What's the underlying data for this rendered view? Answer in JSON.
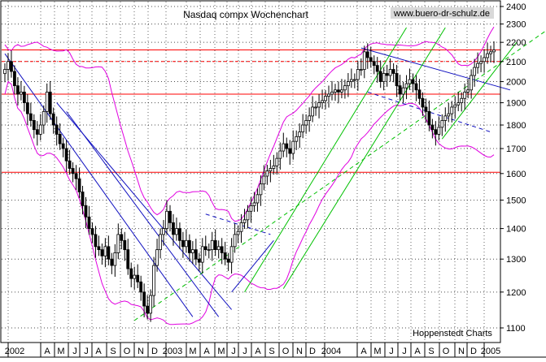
{
  "chart_data": {
    "type": "candlestick",
    "title": "Nasdaq compx Wochenchart",
    "watermark": "www.buero-dr-schulz.de",
    "source_label": "Hoppenstedt Charts",
    "y_scale": "log",
    "ylim": [
      1050,
      2420
    ],
    "y_ticks": [
      2400,
      2300,
      2200,
      2100,
      2000,
      1900,
      1800,
      1700,
      1600,
      1500,
      1400,
      1300,
      1200,
      1100
    ],
    "x_ticks": [
      "2002",
      "A",
      "M",
      "J",
      "J",
      "A",
      "S",
      "O",
      "N",
      "D",
      "2003",
      "M",
      "A",
      "M",
      "J",
      "J",
      "A",
      "S",
      "O",
      "N",
      "D",
      "2004",
      "A",
      "M",
      "J",
      "J",
      "A",
      "S",
      "O",
      "N",
      "D",
      "2005"
    ],
    "horizontal_lines": [
      {
        "value": 2160,
        "style": "solid",
        "color": "#ff0000"
      },
      {
        "value": 2100,
        "style": "dashed",
        "color": "#ff0000"
      },
      {
        "value": 1940,
        "style": "solid",
        "color": "#ff0000"
      },
      {
        "value": 1605,
        "style": "solid",
        "color": "#ff0000"
      }
    ],
    "colors": {
      "candles": "#000000",
      "bollinger": "#e000e0",
      "trend_blue": "#1010c0",
      "trend_green": "#00c000",
      "support_red": "#ff0000",
      "grid": "#000000"
    },
    "weekly_close": [
      2060,
      2100,
      2050,
      1980,
      1940,
      1950,
      1900,
      1850,
      1820,
      1780,
      1760,
      1800,
      1860,
      1950,
      1850,
      1800,
      1760,
      1720,
      1700,
      1650,
      1620,
      1600,
      1580,
      1530,
      1480,
      1440,
      1400,
      1380,
      1340,
      1330,
      1310,
      1340,
      1300,
      1280,
      1320,
      1380,
      1360,
      1330,
      1270,
      1240,
      1250,
      1230,
      1200,
      1160,
      1140,
      1190,
      1280,
      1330,
      1380,
      1400,
      1460,
      1420,
      1380,
      1400,
      1360,
      1340,
      1360,
      1320,
      1330,
      1300,
      1290,
      1340,
      1330,
      1330,
      1360,
      1330,
      1340,
      1320,
      1300,
      1290,
      1340,
      1380,
      1390,
      1420,
      1430,
      1460,
      1480,
      1490,
      1520,
      1560,
      1590,
      1610,
      1620,
      1630,
      1660,
      1690,
      1720,
      1700,
      1680,
      1730,
      1750,
      1770,
      1800,
      1820,
      1840,
      1880,
      1880,
      1900,
      1910,
      1930,
      1940,
      1950,
      1960,
      1950,
      1960,
      1980,
      2000,
      2010,
      2010,
      2060,
      2060,
      2150,
      2120,
      2100,
      2080,
      2050,
      2000,
      2040,
      2030,
      2060,
      2040,
      1980,
      1940,
      1970,
      1990,
      2010,
      1990,
      1960,
      1920,
      1880,
      1860,
      1800,
      1780,
      1760,
      1790,
      1820,
      1840,
      1850,
      1880,
      1890,
      1900,
      1920,
      1950,
      1960,
      2030,
      2070,
      2090,
      2100,
      2120,
      2140,
      2150,
      2160
    ]
  }
}
